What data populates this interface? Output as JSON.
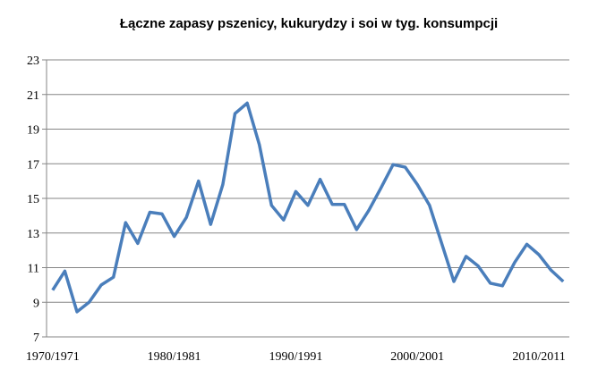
{
  "chart_data": {
    "type": "line",
    "title": "Łączne zapasy pszenicy, kukurydzy i soi w tyg. konsumpcji",
    "categories": [
      "1970/1971",
      null,
      null,
      null,
      null,
      null,
      null,
      null,
      null,
      null,
      "1980/1981",
      null,
      null,
      null,
      null,
      null,
      null,
      null,
      null,
      null,
      "1990/1991",
      null,
      null,
      null,
      null,
      null,
      null,
      null,
      null,
      null,
      "2000/2001",
      null,
      null,
      null,
      null,
      null,
      null,
      null,
      null,
      null,
      "2010/2011",
      null,
      null
    ],
    "values": [
      9.7,
      10.8,
      8.45,
      9.0,
      10.0,
      10.45,
      13.6,
      12.4,
      14.2,
      14.1,
      12.8,
      13.9,
      16.0,
      13.5,
      15.8,
      19.9,
      20.5,
      18.1,
      14.6,
      13.75,
      15.4,
      14.6,
      16.1,
      14.65,
      14.65,
      13.2,
      14.3,
      15.6,
      16.95,
      16.8,
      15.8,
      14.6,
      12.4,
      10.2,
      11.65,
      11.1,
      10.1,
      9.95,
      11.3,
      12.35,
      11.75,
      10.85,
      10.2
    ],
    "color": "#4a7ebb",
    "ylim": [
      7,
      23
    ],
    "yticks": [
      7,
      9,
      11,
      13,
      15,
      17,
      19,
      21,
      23
    ],
    "grid": true
  }
}
